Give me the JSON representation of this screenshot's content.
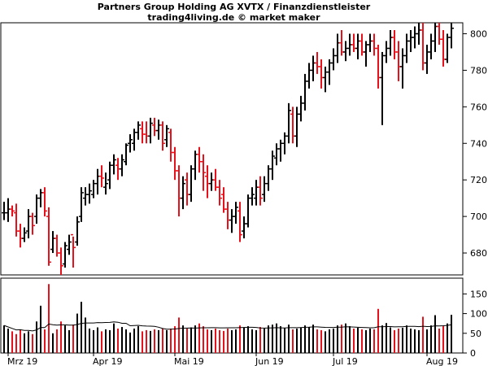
{
  "chart_data": {
    "type": "ohlc",
    "title": "Partners Group Holding AG XVTX / Finanzdienstleister",
    "subtitle": "trading4living.de © market maker",
    "colors": {
      "up": "#000000",
      "down": "#e8101a",
      "avg_line": "#000000",
      "axis": "#000000"
    },
    "price_axis": {
      "side": "right",
      "min": 668,
      "max": 806,
      "ticks": [
        680,
        700,
        720,
        740,
        760,
        780,
        800
      ]
    },
    "volume_axis": {
      "side": "right",
      "min": 0,
      "max": 190,
      "ticks": [
        0,
        50,
        100,
        150
      ]
    },
    "x_labels": [
      {
        "label": "Mrz 19",
        "index": 1
      },
      {
        "label": "Apr 19",
        "index": 22
      },
      {
        "label": "Mai 19",
        "index": 42
      },
      {
        "label": "Jun 19",
        "index": 62
      },
      {
        "label": "Jul 19",
        "index": 81
      },
      {
        "label": "Aug 19",
        "index": 104
      }
    ],
    "grid": false,
    "bars": [
      [
        702,
        708,
        698,
        702,
        70
      ],
      [
        702,
        710,
        697,
        704,
        62
      ],
      [
        704,
        706,
        700,
        703,
        55
      ],
      [
        702,
        707,
        689,
        692,
        48
      ],
      [
        692,
        696,
        683,
        688,
        60
      ],
      [
        688,
        694,
        686,
        691,
        50
      ],
      [
        692,
        704,
        688,
        700,
        55
      ],
      [
        700,
        702,
        690,
        695,
        48
      ],
      [
        700,
        712,
        696,
        710,
        80
      ],
      [
        710,
        715,
        705,
        713,
        120
      ],
      [
        713,
        716,
        700,
        703,
        60
      ],
      [
        700,
        705,
        673,
        675,
        175
      ],
      [
        682,
        692,
        680,
        688,
        50
      ],
      [
        688,
        690,
        678,
        680,
        60
      ],
      [
        680,
        683,
        668,
        673,
        80
      ],
      [
        674,
        686,
        672,
        684,
        70
      ],
      [
        682,
        690,
        679,
        686,
        58
      ],
      [
        690,
        689,
        672,
        683,
        72
      ],
      [
        686,
        700,
        684,
        697,
        100
      ],
      [
        700,
        716,
        697,
        713,
        130
      ],
      [
        710,
        716,
        706,
        712,
        90
      ],
      [
        712,
        718,
        707,
        714,
        62
      ],
      [
        712,
        720,
        710,
        718,
        58
      ],
      [
        718,
        726,
        712,
        722,
        65
      ],
      [
        722,
        728,
        716,
        721,
        55
      ],
      [
        716,
        724,
        712,
        718,
        60
      ],
      [
        720,
        730,
        715,
        728,
        58
      ],
      [
        728,
        734,
        723,
        731,
        75
      ],
      [
        728,
        732,
        720,
        726,
        62
      ],
      [
        726,
        734,
        722,
        731,
        66
      ],
      [
        730,
        740,
        728,
        739,
        60
      ],
      [
        740,
        745,
        735,
        742,
        52
      ],
      [
        740,
        748,
        736,
        746,
        62
      ],
      [
        746,
        752,
        742,
        750,
        68
      ],
      [
        748,
        752,
        740,
        745,
        55
      ],
      [
        745,
        752,
        740,
        744,
        58
      ],
      [
        744,
        754,
        740,
        751,
        56
      ],
      [
        750,
        754,
        744,
        747,
        60
      ],
      [
        747,
        753,
        742,
        750,
        58
      ],
      [
        750,
        752,
        736,
        740,
        62
      ],
      [
        742,
        750,
        738,
        748,
        58
      ],
      [
        746,
        748,
        730,
        735,
        62
      ],
      [
        735,
        738,
        720,
        725,
        68
      ],
      [
        725,
        728,
        700,
        710,
        90
      ],
      [
        710,
        722,
        704,
        718,
        70
      ],
      [
        720,
        724,
        706,
        712,
        62
      ],
      [
        712,
        728,
        708,
        726,
        65
      ],
      [
        726,
        736,
        720,
        734,
        70
      ],
      [
        734,
        738,
        724,
        730,
        75
      ],
      [
        730,
        734,
        714,
        724,
        68
      ],
      [
        722,
        728,
        710,
        718,
        60
      ],
      [
        718,
        724,
        714,
        720,
        58
      ],
      [
        720,
        726,
        714,
        716,
        62
      ],
      [
        716,
        720,
        706,
        710,
        58
      ],
      [
        712,
        716,
        702,
        704,
        56
      ],
      [
        704,
        708,
        693,
        698,
        62
      ],
      [
        698,
        704,
        691,
        700,
        58
      ],
      [
        700,
        708,
        696,
        705,
        60
      ],
      [
        703,
        708,
        686,
        690,
        70
      ],
      [
        692,
        700,
        688,
        696,
        65
      ],
      [
        696,
        712,
        694,
        710,
        68
      ],
      [
        710,
        716,
        706,
        712,
        60
      ],
      [
        710,
        720,
        706,
        716,
        58
      ],
      [
        716,
        722,
        706,
        710,
        66
      ],
      [
        712,
        722,
        708,
        718,
        62
      ],
      [
        718,
        728,
        714,
        726,
        70
      ],
      [
        726,
        736,
        720,
        733,
        72
      ],
      [
        732,
        740,
        728,
        737,
        75
      ],
      [
        737,
        742,
        730,
        740,
        68
      ],
      [
        740,
        746,
        734,
        744,
        64
      ],
      [
        744,
        762,
        740,
        758,
        72
      ],
      [
        756,
        760,
        740,
        744,
        60
      ],
      [
        744,
        760,
        738,
        756,
        62
      ],
      [
        756,
        766,
        752,
        762,
        65
      ],
      [
        762,
        778,
        758,
        774,
        70
      ],
      [
        774,
        784,
        770,
        780,
        66
      ],
      [
        780,
        788,
        774,
        784,
        72
      ],
      [
        784,
        790,
        778,
        782,
        60
      ],
      [
        782,
        786,
        770,
        776,
        58
      ],
      [
        776,
        782,
        768,
        779,
        55
      ],
      [
        779,
        786,
        772,
        784,
        60
      ],
      [
        784,
        792,
        780,
        788,
        62
      ],
      [
        788,
        800,
        784,
        795,
        70
      ],
      [
        795,
        802,
        788,
        790,
        72
      ],
      [
        790,
        796,
        785,
        792,
        75
      ],
      [
        792,
        800,
        788,
        794,
        68
      ],
      [
        794,
        800,
        790,
        792,
        62
      ],
      [
        792,
        800,
        786,
        796,
        64
      ],
      [
        796,
        800,
        788,
        790,
        60
      ],
      [
        790,
        796,
        782,
        794,
        58
      ],
      [
        794,
        800,
        790,
        796,
        62
      ],
      [
        796,
        800,
        788,
        792,
        60
      ],
      [
        792,
        794,
        770,
        776,
        112
      ],
      [
        776,
        790,
        750,
        788,
        70
      ],
      [
        788,
        796,
        784,
        792,
        76
      ],
      [
        792,
        802,
        788,
        798,
        65
      ],
      [
        798,
        802,
        786,
        790,
        58
      ],
      [
        790,
        796,
        774,
        782,
        62
      ],
      [
        782,
        792,
        770,
        788,
        64
      ],
      [
        788,
        800,
        784,
        796,
        70
      ],
      [
        796,
        802,
        790,
        798,
        62
      ],
      [
        798,
        804,
        792,
        800,
        60
      ],
      [
        800,
        806,
        794,
        802,
        58
      ],
      [
        802,
        806,
        780,
        784,
        92
      ],
      [
        784,
        794,
        778,
        790,
        60
      ],
      [
        790,
        800,
        786,
        796,
        70
      ],
      [
        796,
        806,
        790,
        804,
        96
      ],
      [
        804,
        806,
        794,
        797,
        62
      ],
      [
        797,
        802,
        782,
        786,
        68
      ],
      [
        786,
        800,
        784,
        798,
        75
      ],
      [
        798,
        806,
        792,
        803,
        97
      ]
    ]
  }
}
